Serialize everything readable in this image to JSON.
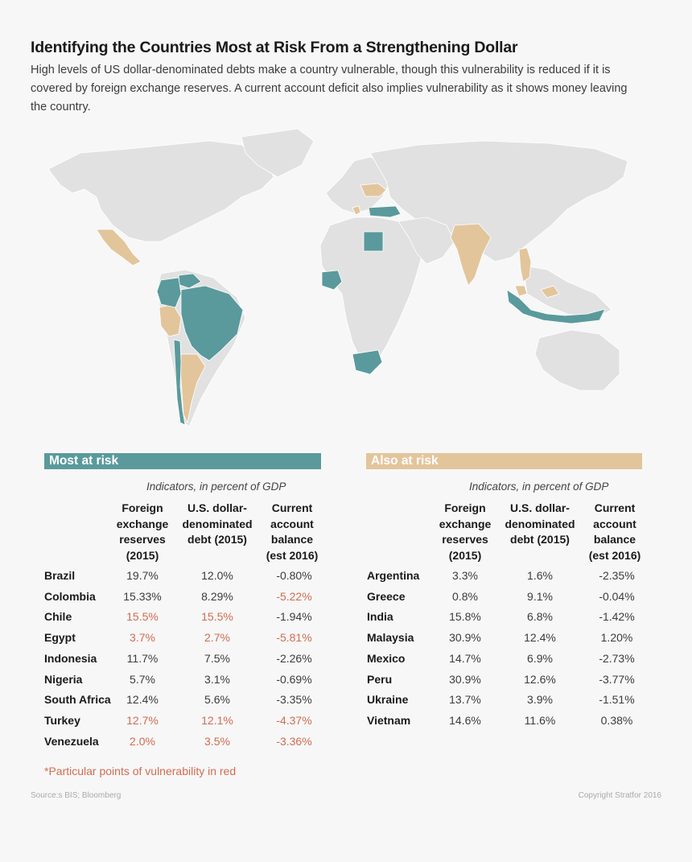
{
  "title": "Identifying the Countries Most at Risk From a Strengthening Dollar",
  "subtitle": "High levels of US dollar-denominated debts make a country vulnerable, though this vulnerability is reduced if it is covered by foreign exchange reserves. A current account deficit also implies vulnerability as it shows money leaving the country.",
  "colors": {
    "most_at_risk": "#5a9a9c",
    "also_at_risk": "#e3c59c",
    "land": "#e1e1e1",
    "vulnerability_red": "#d06c52"
  },
  "map": {
    "most_at_risk_countries": [
      "Brazil",
      "Colombia",
      "Chile",
      "Egypt",
      "Indonesia",
      "Nigeria",
      "South Africa",
      "Turkey",
      "Venezuela"
    ],
    "also_at_risk_countries": [
      "Argentina",
      "Greece",
      "India",
      "Malaysia",
      "Mexico",
      "Peru",
      "Ukraine",
      "Vietnam"
    ]
  },
  "most": {
    "label": "Most at risk",
    "indicators": "Indicators, in percent of GDP",
    "headers": [
      "Foreign exchange reserves (2015)",
      "U.S. dollar-denominated debt (2015)",
      "Current account balance (est 2016)"
    ],
    "rows": [
      {
        "country": "Brazil",
        "reserves": "19.7%",
        "debt": "12.0%",
        "balance": "-0.80%",
        "red": [
          false,
          false,
          false
        ]
      },
      {
        "country": "Colombia",
        "reserves": "15.33%",
        "debt": "8.29%",
        "balance": "-5.22%",
        "red": [
          false,
          false,
          true
        ]
      },
      {
        "country": "Chile",
        "reserves": "15.5%",
        "debt": "15.5%",
        "balance": "-1.94%",
        "red": [
          true,
          true,
          false
        ]
      },
      {
        "country": "Egypt",
        "reserves": "3.7%",
        "debt": "2.7%",
        "balance": "-5.81%",
        "red": [
          true,
          true,
          true
        ]
      },
      {
        "country": "Indonesia",
        "reserves": "11.7%",
        "debt": "7.5%",
        "balance": "-2.26%",
        "red": [
          false,
          false,
          false
        ]
      },
      {
        "country": "Nigeria",
        "reserves": "5.7%",
        "debt": "3.1%",
        "balance": "-0.69%",
        "red": [
          false,
          false,
          false
        ]
      },
      {
        "country": "South Africa",
        "reserves": "12.4%",
        "debt": "5.6%",
        "balance": "-3.35%",
        "red": [
          false,
          false,
          false
        ]
      },
      {
        "country": "Turkey",
        "reserves": "12.7%",
        "debt": "12.1%",
        "balance": "-4.37%",
        "red": [
          true,
          true,
          true
        ]
      },
      {
        "country": "Venezuela",
        "reserves": "2.0%",
        "debt": "3.5%",
        "balance": "-3.36%",
        "red": [
          true,
          true,
          true
        ]
      }
    ]
  },
  "also": {
    "label": "Also at risk",
    "indicators": "Indicators, in percent of GDP",
    "headers": [
      "Foreign exchange reserves (2015)",
      "U.S. dollar-denominated debt (2015)",
      "Current account balance (est 2016)"
    ],
    "rows": [
      {
        "country": "Argentina",
        "reserves": "3.3%",
        "debt": "1.6%",
        "balance": "-2.35%",
        "red": [
          false,
          false,
          false
        ]
      },
      {
        "country": "Greece",
        "reserves": "0.8%",
        "debt": "9.1%",
        "balance": "-0.04%",
        "red": [
          false,
          false,
          false
        ]
      },
      {
        "country": "India",
        "reserves": "15.8%",
        "debt": "6.8%",
        "balance": "-1.42%",
        "red": [
          false,
          false,
          false
        ]
      },
      {
        "country": "Malaysia",
        "reserves": "30.9%",
        "debt": "12.4%",
        "balance": "1.20%",
        "red": [
          false,
          false,
          false
        ]
      },
      {
        "country": "Mexico",
        "reserves": "14.7%",
        "debt": "6.9%",
        "balance": "-2.73%",
        "red": [
          false,
          false,
          false
        ]
      },
      {
        "country": "Peru",
        "reserves": "30.9%",
        "debt": "12.6%",
        "balance": "-3.77%",
        "red": [
          false,
          false,
          false
        ]
      },
      {
        "country": "Ukraine",
        "reserves": "13.7%",
        "debt": "3.9%",
        "balance": "-1.51%",
        "red": [
          false,
          false,
          false
        ]
      },
      {
        "country": "Vietnam",
        "reserves": "14.6%",
        "debt": "11.6%",
        "balance": "0.38%",
        "red": [
          false,
          false,
          false
        ]
      }
    ]
  },
  "footnote": "*Particular points of vulnerability in red",
  "source": "Source:s BIS; Bloomberg",
  "copyright": "Copyright Stratfor 2016"
}
